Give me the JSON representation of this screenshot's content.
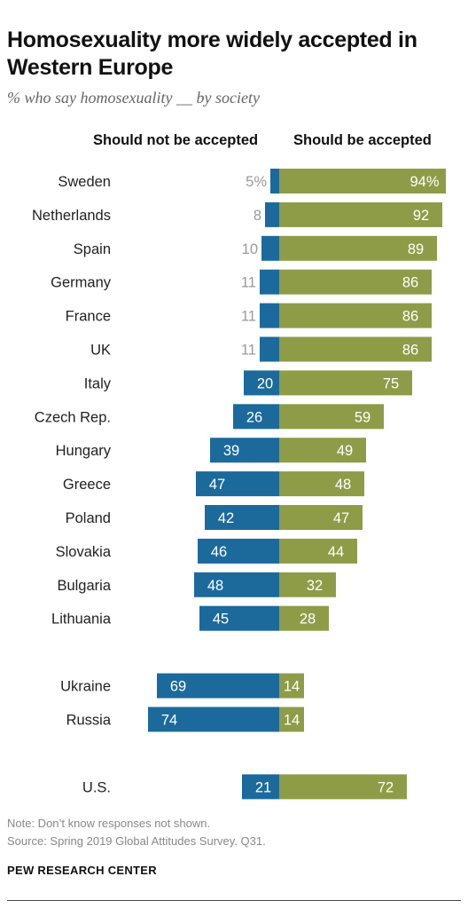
{
  "title": "Homosexuality more widely accepted in Western Europe",
  "subtitle": "% who say homosexuality __ by society",
  "note": "Note: Don’t know responses not shown.",
  "source": "Source: Spring 2019 Global Attitudes Survey. Q31.",
  "footer": "PEW RESEARCH CENTER",
  "colors": {
    "not_accepted": "#1c6a9c",
    "accepted": "#8e9c48",
    "small_label": "#9a9a9a",
    "bar_label": "#ffffff"
  },
  "chart_data": {
    "type": "bar",
    "orientation": "horizontal-diverging",
    "categories": [
      "Sweden",
      "Netherlands",
      "Spain",
      "Germany",
      "France",
      "UK",
      "Italy",
      "Czech Rep.",
      "Hungary",
      "Greece",
      "Poland",
      "Slovakia",
      "Bulgaria",
      "Lithuania",
      "Ukraine",
      "Russia",
      "U.S."
    ],
    "groups": [
      [
        "Sweden",
        "Netherlands",
        "Spain",
        "Germany",
        "France",
        "UK",
        "Italy",
        "Czech Rep.",
        "Hungary",
        "Greece",
        "Poland",
        "Slovakia",
        "Bulgaria",
        "Lithuania"
      ],
      [
        "Ukraine",
        "Russia"
      ],
      [
        "U.S."
      ]
    ],
    "series": [
      {
        "name": "Should not be accepted",
        "values": [
          5,
          8,
          10,
          11,
          11,
          11,
          20,
          26,
          39,
          47,
          42,
          46,
          48,
          45,
          69,
          74,
          21
        ],
        "labels": [
          "5%",
          "8",
          "10",
          "11",
          "11",
          "11",
          "20",
          "26",
          "39",
          "47",
          "42",
          "46",
          "48",
          "45",
          "69",
          "74",
          "21"
        ]
      },
      {
        "name": "Should be accepted",
        "values": [
          94,
          92,
          89,
          86,
          86,
          86,
          75,
          59,
          49,
          48,
          47,
          44,
          32,
          28,
          14,
          14,
          72
        ],
        "labels": [
          "94%",
          "92",
          "89",
          "86",
          "86",
          "86",
          "75",
          "59",
          "49",
          "48",
          "47",
          "44",
          "32",
          "28",
          "14",
          "14",
          "72"
        ]
      }
    ],
    "xlim": [
      0,
      100
    ],
    "grid": false,
    "legend": "column headers above bars"
  }
}
